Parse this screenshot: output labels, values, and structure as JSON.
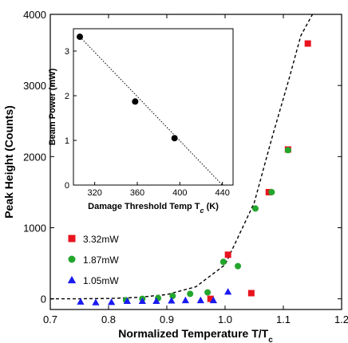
{
  "chart_data": [
    {
      "type": "scatter",
      "xlabel": "Normalized Temperature T/T",
      "xlabel_sub": "c",
      "ylabel": "Peak Height (Counts)",
      "xlim": [
        0.7,
        1.2
      ],
      "ylim": [
        -150,
        4000
      ],
      "xticks": [
        "0.7",
        "0.8",
        "0.9",
        "1.0",
        "1.1",
        "1.2"
      ],
      "xtick_values": [
        0.7,
        0.8,
        0.9,
        1.0,
        1.1,
        1.2
      ],
      "yticks": [
        "0",
        "1000",
        "2000",
        "3000",
        "4000"
      ],
      "ytick_values": [
        0,
        1000,
        2000,
        3000,
        4000
      ],
      "legend_position": "bottom-left",
      "series": [
        {
          "name": "3.32mW",
          "marker": "square",
          "color": "#e8141e",
          "points": [
            [
              0.975,
              0
            ],
            [
              1.005,
              620
            ],
            [
              1.045,
              80
            ],
            [
              1.075,
              1500
            ],
            [
              1.108,
              2100
            ],
            [
              1.142,
              3590
            ]
          ]
        },
        {
          "name": "1.87mW",
          "marker": "circle",
          "color": "#23a62c",
          "points": [
            [
              0.83,
              -20
            ],
            [
              0.858,
              0
            ],
            [
              0.885,
              10
            ],
            [
              0.91,
              40
            ],
            [
              0.94,
              70
            ],
            [
              0.97,
              90
            ],
            [
              0.997,
              520
            ],
            [
              1.022,
              460
            ],
            [
              1.052,
              1270
            ],
            [
              1.08,
              1500
            ],
            [
              1.108,
              2090
            ]
          ]
        },
        {
          "name": "1.05mW",
          "marker": "triangle",
          "color": "#1a1af0",
          "points": [
            [
              0.752,
              -40
            ],
            [
              0.778,
              -50
            ],
            [
              0.805,
              -45
            ],
            [
              0.832,
              -30
            ],
            [
              0.858,
              -30
            ],
            [
              0.882,
              -30
            ],
            [
              0.908,
              -25
            ],
            [
              0.932,
              -20
            ],
            [
              0.958,
              -20
            ],
            [
              0.98,
              -20
            ],
            [
              1.005,
              100
            ]
          ]
        }
      ],
      "fit_curve": {
        "style": "dashed",
        "color": "#000000",
        "points": [
          [
            0.7,
            0
          ],
          [
            0.75,
            1
          ],
          [
            0.8,
            5
          ],
          [
            0.85,
            20
          ],
          [
            0.9,
            60
          ],
          [
            0.95,
            170
          ],
          [
            1.0,
            480
          ],
          [
            1.05,
            1350
          ],
          [
            1.08,
            2250
          ],
          [
            1.11,
            3100
          ],
          [
            1.13,
            3700
          ],
          [
            1.15,
            4000
          ]
        ]
      }
    },
    {
      "type": "scatter",
      "xlabel": "Damage Threshold Temp T",
      "xlabel_sub": "c",
      "xlabel_unit": " (K)",
      "ylabel": "Beam Power  (mW)",
      "xlim": [
        300,
        450
      ],
      "ylim": [
        0,
        3.5
      ],
      "xticks": [
        "320",
        "360",
        "400",
        "440"
      ],
      "xtick_values": [
        320,
        360,
        400,
        440
      ],
      "yticks": [
        "0",
        "1",
        "2",
        "3"
      ],
      "ytick_values": [
        0,
        1,
        2,
        3
      ],
      "series": [
        {
          "marker": "circle",
          "color": "#000000",
          "points": [
            [
              306,
              3.32
            ],
            [
              358,
              1.87
            ],
            [
              395,
              1.05
            ]
          ]
        }
      ],
      "fit_line": {
        "style": "dotted",
        "color": "#000000",
        "points": [
          [
            306,
            3.32
          ],
          [
            440,
            0
          ]
        ]
      }
    }
  ]
}
